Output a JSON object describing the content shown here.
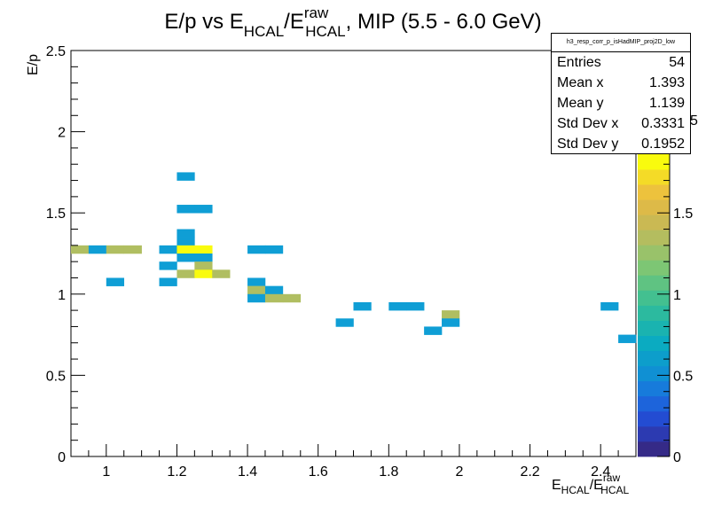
{
  "chart_data": {
    "type": "heatmap",
    "title": "E/p vs E_HCAL/E_HCAL^raw, MIP (5.5 - 6.0 GeV)",
    "title_parts": {
      "a": "E/p vs E",
      "b": "HCAL",
      "c": "/E",
      "d": "raw",
      "e": "HCAL",
      "f": ", MIP (5.5 - 6.0 GeV)"
    },
    "xlabel": "E_HCAL/E_HCAL^raw",
    "xlabel_parts": {
      "a": "E",
      "b": "HCAL",
      "c": "/E",
      "d": "raw",
      "e": "HCAL"
    },
    "ylabel": "E/p",
    "xlim": [
      0.9,
      2.5
    ],
    "ylim": [
      0,
      2.5
    ],
    "x_ticks": [
      "1",
      "1.2",
      "1.4",
      "1.6",
      "1.8",
      "2",
      "2.2",
      "2.4"
    ],
    "y_ticks": [
      "0",
      "0.5",
      "1",
      "1.5",
      "2",
      "2.5"
    ],
    "bin_width_x": 0.05,
    "bin_height_y": 0.05,
    "cells": [
      {
        "x": 0.9,
        "y": 1.25,
        "v": 2
      },
      {
        "x": 0.95,
        "y": 1.25,
        "v": 1
      },
      {
        "x": 1.0,
        "y": 1.25,
        "v": 2
      },
      {
        "x": 1.05,
        "y": 1.25,
        "v": 2
      },
      {
        "x": 1.0,
        "y": 1.05,
        "v": 1
      },
      {
        "x": 1.15,
        "y": 1.25,
        "v": 1
      },
      {
        "x": 1.15,
        "y": 1.15,
        "v": 1
      },
      {
        "x": 1.15,
        "y": 1.05,
        "v": 1
      },
      {
        "x": 1.2,
        "y": 1.7,
        "v": 1
      },
      {
        "x": 1.2,
        "y": 1.5,
        "v": 1
      },
      {
        "x": 1.25,
        "y": 1.5,
        "v": 1
      },
      {
        "x": 1.2,
        "y": 1.35,
        "v": 1
      },
      {
        "x": 1.2,
        "y": 1.3,
        "v": 1
      },
      {
        "x": 1.2,
        "y": 1.25,
        "v": 3
      },
      {
        "x": 1.25,
        "y": 1.25,
        "v": 3
      },
      {
        "x": 1.2,
        "y": 1.2,
        "v": 1
      },
      {
        "x": 1.25,
        "y": 1.2,
        "v": 1
      },
      {
        "x": 1.25,
        "y": 1.15,
        "v": 2
      },
      {
        "x": 1.2,
        "y": 1.1,
        "v": 2
      },
      {
        "x": 1.25,
        "y": 1.1,
        "v": 3
      },
      {
        "x": 1.3,
        "y": 1.1,
        "v": 2
      },
      {
        "x": 1.4,
        "y": 1.25,
        "v": 1
      },
      {
        "x": 1.45,
        "y": 1.25,
        "v": 1
      },
      {
        "x": 1.4,
        "y": 1.05,
        "v": 1
      },
      {
        "x": 1.4,
        "y": 1.0,
        "v": 2
      },
      {
        "x": 1.45,
        "y": 1.0,
        "v": 1
      },
      {
        "x": 1.4,
        "y": 0.95,
        "v": 1
      },
      {
        "x": 1.45,
        "y": 0.95,
        "v": 2
      },
      {
        "x": 1.5,
        "y": 0.95,
        "v": 2
      },
      {
        "x": 1.65,
        "y": 0.8,
        "v": 1
      },
      {
        "x": 1.7,
        "y": 0.9,
        "v": 1
      },
      {
        "x": 1.8,
        "y": 0.9,
        "v": 1
      },
      {
        "x": 1.85,
        "y": 0.9,
        "v": 1
      },
      {
        "x": 1.9,
        "y": 0.75,
        "v": 1
      },
      {
        "x": 1.95,
        "y": 0.85,
        "v": 2
      },
      {
        "x": 1.95,
        "y": 0.8,
        "v": 1
      },
      {
        "x": 2.4,
        "y": 0.9,
        "v": 1
      },
      {
        "x": 2.45,
        "y": 0.7,
        "v": 1
      }
    ],
    "colorbar": {
      "zlim": [
        0,
        2.5
      ],
      "ticks": [
        "0",
        "0.5",
        "1",
        "1.5",
        "2"
      ],
      "partial_tick": "5",
      "stops": [
        "#352a87",
        "#2546cf",
        "#1a6fdf",
        "#0f94d2",
        "#0aaac3",
        "#24b8a5",
        "#4bc28a",
        "#80c673",
        "#b0be61",
        "#d6b64d",
        "#f1c43a",
        "#f9fb0e"
      ]
    },
    "cell_colors": {
      "1": "#0f9ed5",
      "2": "#b0be61",
      "3": "#f9fb0e"
    },
    "stats": {
      "name": "h3_resp_corr_p_isHadMIP_proj2D_low",
      "rows": [
        {
          "label": "Entries",
          "value": "54"
        },
        {
          "label": "Mean x",
          "value": "1.393"
        },
        {
          "label": "Mean y",
          "value": "1.139"
        },
        {
          "label": "Std Dev x",
          "value": "0.3331"
        },
        {
          "label": "Std Dev y",
          "value": "0.1952"
        }
      ]
    }
  }
}
